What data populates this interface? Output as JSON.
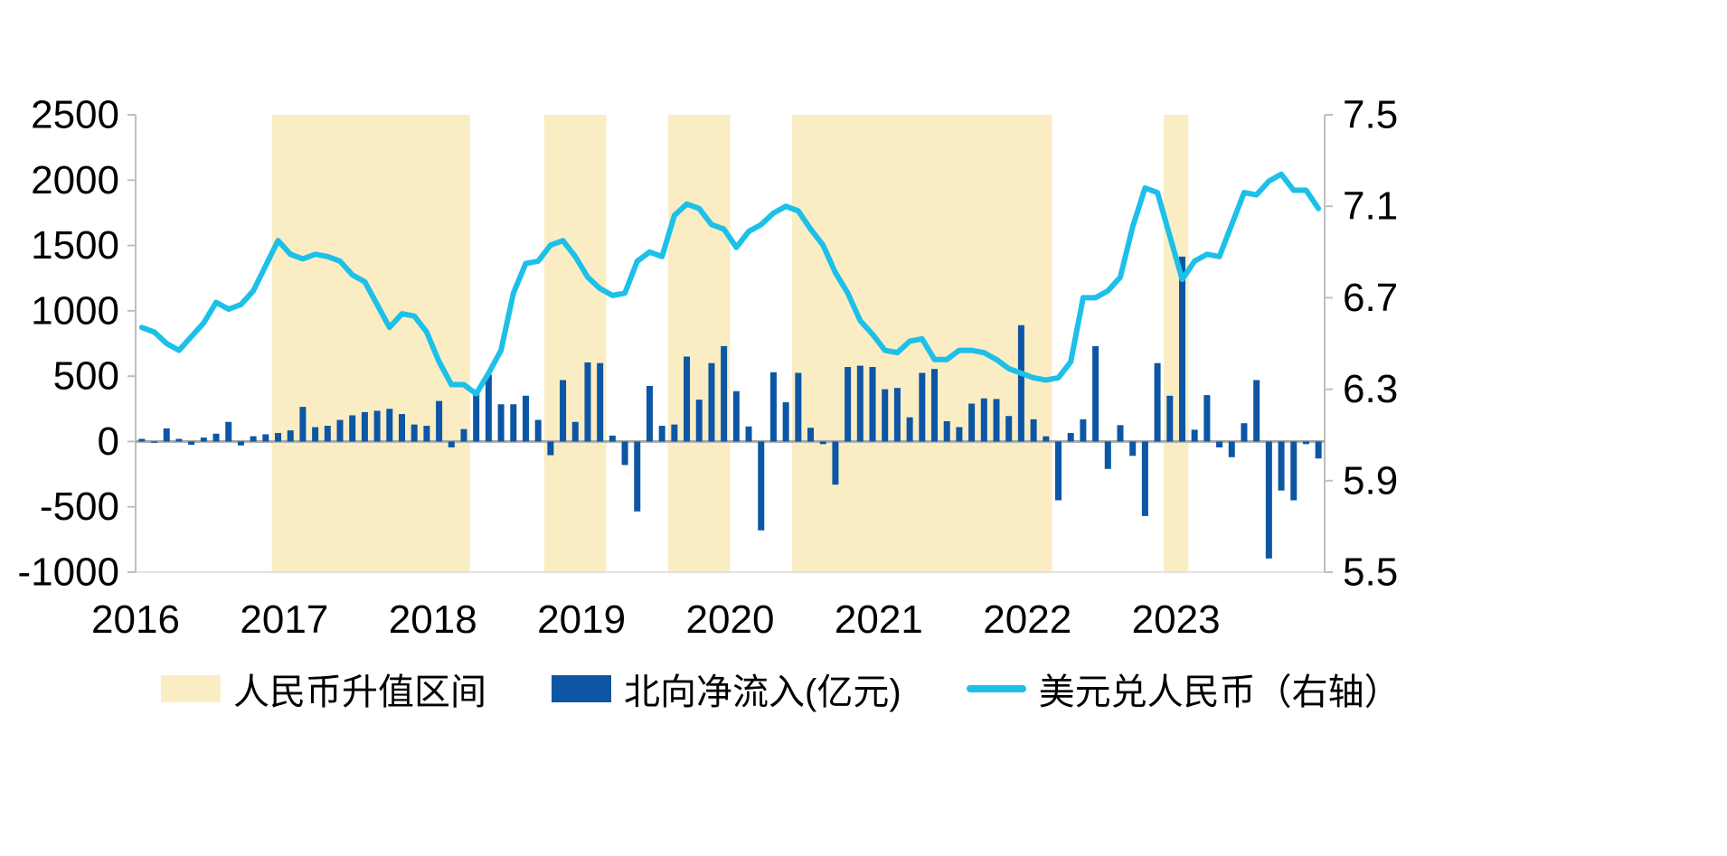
{
  "colors": {
    "band": "#FAEDC4",
    "bar": "#0C56A4",
    "line": "#1CC0E8",
    "zero_line": "#a6a6a6",
    "axis_line": "#bfbfbf",
    "text": "#000000"
  },
  "legend": [
    {
      "label": "人民币升值区间",
      "type": "band"
    },
    {
      "label": "北向净流入(亿元)",
      "type": "bar"
    },
    {
      "label": "美元兑人民币（右轴）",
      "type": "line"
    }
  ],
  "chart_data": {
    "type": "bar",
    "title": "",
    "x_start": "2016-01",
    "x_frequency": "monthly",
    "x_year_ticks": [
      "2016",
      "2017",
      "2018",
      "2019",
      "2020",
      "2021",
      "2022",
      "2023"
    ],
    "left_axis": {
      "min": -1000,
      "max": 2500,
      "ticks": [
        2500,
        2000,
        1500,
        1000,
        500,
        0,
        -500,
        -1000
      ],
      "series": "北向净流入(亿元)"
    },
    "right_axis": {
      "min": 5.5,
      "max": 7.5,
      "ticks": [
        "7.5",
        "7.1",
        "6.7",
        "6.3",
        "5.9",
        "5.5"
      ],
      "series": "美元兑人民币（右轴）"
    },
    "bands": [
      {
        "from": "2016-12",
        "to": "2018-03",
        "label": "人民币升值区间"
      },
      {
        "from": "2018-10",
        "to": "2019-02",
        "label": "人民币升值区间"
      },
      {
        "from": "2019-08",
        "to": "2019-12",
        "label": "人民币升值区间"
      },
      {
        "from": "2020-06",
        "to": "2022-02",
        "label": "人民币升值区间"
      },
      {
        "from": "2022-12",
        "to": "2023-01",
        "label": "人民币升值区间"
      }
    ],
    "series": [
      {
        "name": "北向净流入(亿元)",
        "kind": "bar",
        "axis": "left",
        "values": [
          20,
          -10,
          100,
          20,
          -25,
          30,
          60,
          150,
          -30,
          40,
          55,
          65,
          85,
          265,
          110,
          120,
          165,
          200,
          225,
          235,
          250,
          210,
          130,
          120,
          310,
          -45,
          95,
          390,
          510,
          285,
          285,
          350,
          165,
          -105,
          470,
          150,
          605,
          600,
          45,
          -180,
          -535,
          425,
          120,
          130,
          650,
          320,
          600,
          730,
          385,
          115,
          -680,
          530,
          300,
          525,
          105,
          -20,
          -330,
          570,
          580,
          570,
          400,
          410,
          185,
          525,
          555,
          155,
          110,
          290,
          330,
          325,
          195,
          890,
          170,
          40,
          -450,
          65,
          170,
          730,
          -210,
          125,
          -110,
          -570,
          600,
          350,
          1415,
          90,
          355,
          -45,
          -120,
          140,
          470,
          -895,
          -375,
          -450,
          -20,
          -130
        ]
      },
      {
        "name": "美元兑人民币（右轴）",
        "kind": "line",
        "axis": "right",
        "values": [
          6.57,
          6.55,
          6.5,
          6.47,
          6.53,
          6.59,
          6.68,
          6.65,
          6.67,
          6.73,
          6.84,
          6.95,
          6.89,
          6.87,
          6.89,
          6.88,
          6.86,
          6.8,
          6.77,
          6.67,
          6.57,
          6.63,
          6.62,
          6.55,
          6.42,
          6.32,
          6.32,
          6.28,
          6.37,
          6.47,
          6.72,
          6.85,
          6.86,
          6.93,
          6.95,
          6.88,
          6.79,
          6.74,
          6.71,
          6.72,
          6.86,
          6.9,
          6.88,
          7.06,
          7.11,
          7.09,
          7.02,
          7.0,
          6.92,
          6.99,
          7.02,
          7.07,
          7.1,
          7.08,
          7.0,
          6.93,
          6.81,
          6.72,
          6.6,
          6.54,
          6.47,
          6.46,
          6.51,
          6.52,
          6.43,
          6.43,
          6.47,
          6.47,
          6.46,
          6.43,
          6.39,
          6.37,
          6.35,
          6.34,
          6.35,
          6.42,
          6.7,
          6.7,
          6.73,
          6.79,
          7.01,
          7.18,
          7.16,
          6.97,
          6.78,
          6.86,
          6.89,
          6.88,
          7.02,
          7.16,
          7.15,
          7.21,
          7.24,
          7.17,
          7.17,
          7.09
        ]
      }
    ],
    "grid": false,
    "legend_position": "bottom"
  }
}
